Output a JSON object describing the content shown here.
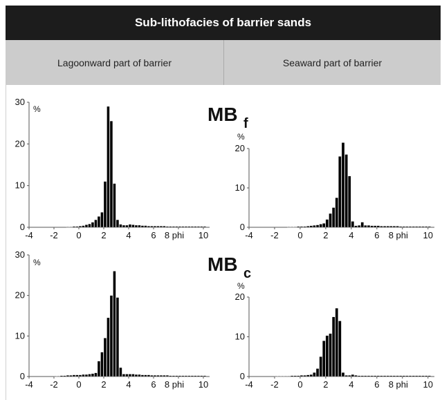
{
  "header": {
    "title": "Sub-lithofacies of barrier sands",
    "col_left": "Lagoonward part  of barrier",
    "col_right": "Seaward part of barrier"
  },
  "row_labels": [
    {
      "main": "MB",
      "sub": "f"
    },
    {
      "main": "MB",
      "sub": "c"
    }
  ],
  "colors": {
    "bar": "#000000",
    "header_bg": "#1c1c1c",
    "subheader_bg": "#cccccc"
  },
  "chart_data": [
    {
      "type": "bar",
      "row_label": "MB f",
      "column": "Lagoonward part  of barrier",
      "ylabel": "%",
      "ylim": [
        0,
        30
      ],
      "yticks": [
        0,
        10,
        20,
        30
      ],
      "xlim": [
        -4,
        10.5
      ],
      "xticks": [
        "-4",
        "-2",
        "0",
        "2",
        "4",
        "6",
        "8 phi",
        "10"
      ],
      "bin_width": 0.25,
      "x": [
        -1.0,
        -0.75,
        -0.5,
        -0.25,
        0.0,
        0.25,
        0.5,
        0.75,
        1.0,
        1.25,
        1.5,
        1.75,
        2.0,
        2.25,
        2.5,
        2.75,
        3.0,
        3.25,
        3.5,
        3.75,
        4.0,
        4.25,
        4.5,
        4.75,
        5.0,
        5.25,
        5.5,
        5.75,
        6.0,
        6.25,
        6.5,
        6.75,
        7.0,
        7.25,
        7.5,
        7.75,
        8.0,
        8.25,
        8.5,
        8.75,
        9.0,
        9.25,
        9.5,
        9.75,
        10.0
      ],
      "values": [
        0.1,
        0.1,
        0.2,
        0.2,
        0.3,
        0.4,
        0.6,
        0.8,
        1.2,
        1.8,
        2.6,
        3.6,
        11,
        29,
        25.5,
        10.5,
        1.8,
        0.7,
        0.5,
        0.5,
        0.7,
        0.6,
        0.5,
        0.5,
        0.4,
        0.4,
        0.3,
        0.3,
        0.3,
        0.3,
        0.3,
        0.3,
        0.2,
        0.2,
        0.2,
        0.2,
        0.2,
        0.2,
        0.2,
        0.2,
        0.2,
        0.2,
        0.2,
        0.2,
        0.2
      ]
    },
    {
      "type": "bar",
      "row_label": "MB f",
      "column": "Seaward part of barrier",
      "ylabel": "%",
      "ylim": [
        0,
        20
      ],
      "yticks": [
        0,
        10,
        20
      ],
      "xlim": [
        -4,
        10.5
      ],
      "xticks": [
        "-4",
        "-2",
        "0",
        "2",
        "4",
        "6",
        "8 phi",
        "10"
      ],
      "bin_width": 0.25,
      "x": [
        -1.0,
        -0.75,
        -0.5,
        -0.25,
        0.0,
        0.25,
        0.5,
        0.75,
        1.0,
        1.25,
        1.5,
        1.75,
        2.0,
        2.25,
        2.5,
        2.75,
        3.0,
        3.25,
        3.5,
        3.75,
        4.0,
        4.25,
        4.5,
        4.75,
        5.0,
        5.25,
        5.5,
        5.75,
        6.0,
        6.25,
        6.5,
        6.75,
        7.0,
        7.25,
        7.5,
        7.75,
        8.0,
        8.25,
        8.5,
        8.75,
        9.0,
        9.25,
        9.5,
        9.75,
        10.0
      ],
      "values": [
        0.1,
        0.1,
        0.1,
        0.2,
        0.2,
        0.2,
        0.3,
        0.4,
        0.5,
        0.6,
        0.8,
        1.0,
        2.0,
        3.5,
        5.0,
        7.5,
        18,
        21.5,
        18.5,
        13,
        1.5,
        0.4,
        0.5,
        1.3,
        0.5,
        0.5,
        0.4,
        0.4,
        0.4,
        0.3,
        0.3,
        0.3,
        0.3,
        0.3,
        0.3,
        0.2,
        0.2,
        0.2,
        0.2,
        0.2,
        0.2,
        0.2,
        0.2,
        0.2,
        0.2
      ]
    },
    {
      "type": "bar",
      "row_label": "MB c",
      "column": "Lagoonward part  of barrier",
      "ylabel": "%",
      "ylim": [
        0,
        30
      ],
      "yticks": [
        0,
        10,
        20,
        30
      ],
      "xlim": [
        -4,
        10.5
      ],
      "xticks": [
        "-4",
        "-2",
        "0",
        "2",
        "4",
        "6",
        "8 phi",
        "10"
      ],
      "bin_width": 0.25,
      "x": [
        -2.0,
        -1.75,
        -1.5,
        -1.25,
        -1.0,
        -0.75,
        -0.5,
        -0.25,
        0.0,
        0.25,
        0.5,
        0.75,
        1.0,
        1.25,
        1.5,
        1.75,
        2.0,
        2.25,
        2.5,
        2.75,
        3.0,
        3.25,
        3.5,
        3.75,
        4.0,
        4.25,
        4.5,
        4.75,
        5.0,
        5.25,
        5.5,
        5.75,
        6.0,
        6.25,
        6.5,
        6.75,
        7.0,
        7.25,
        7.5,
        7.75,
        8.0,
        8.25,
        8.5,
        8.75,
        9.0,
        9.25,
        9.5,
        9.75,
        10.0
      ],
      "values": [
        0.1,
        0.1,
        0.2,
        0.2,
        0.3,
        0.3,
        0.4,
        0.4,
        0.4,
        0.5,
        0.5,
        0.6,
        0.7,
        0.9,
        3.8,
        6.0,
        9.5,
        14.5,
        20,
        26,
        19.5,
        2.2,
        0.6,
        0.6,
        0.6,
        0.6,
        0.5,
        0.5,
        0.4,
        0.4,
        0.4,
        0.3,
        0.3,
        0.3,
        0.3,
        0.3,
        0.3,
        0.2,
        0.2,
        0.2,
        0.2,
        0.2,
        0.2,
        0.2,
        0.2,
        0.2,
        0.2,
        0.2,
        0.2
      ]
    },
    {
      "type": "bar",
      "row_label": "MB c",
      "column": "Seaward part of barrier",
      "ylabel": "%",
      "ylim": [
        0,
        20
      ],
      "yticks": [
        0,
        10,
        20
      ],
      "xlim": [
        -4,
        10.5
      ],
      "xticks": [
        "-4",
        "-2",
        "0",
        "2",
        "4",
        "6",
        "8 phi",
        "10"
      ],
      "bin_width": 0.25,
      "x": [
        -2.0,
        -1.75,
        -1.5,
        -1.25,
        -1.0,
        -0.75,
        -0.5,
        -0.25,
        0.0,
        0.25,
        0.5,
        0.75,
        1.0,
        1.25,
        1.5,
        1.75,
        2.0,
        2.25,
        2.5,
        2.75,
        3.0,
        3.25,
        3.5,
        3.75,
        4.0,
        4.25,
        4.5,
        4.75,
        5.0,
        5.25,
        5.5,
        5.75,
        6.0,
        6.25,
        6.5,
        6.75,
        7.0,
        7.25,
        7.5,
        7.75,
        8.0,
        8.25,
        8.5,
        8.75,
        9.0,
        9.25,
        9.5,
        9.75,
        10.0
      ],
      "values": [
        0.1,
        0.1,
        0.1,
        0.1,
        0.1,
        0.2,
        0.2,
        0.2,
        0.3,
        0.3,
        0.4,
        0.5,
        1.0,
        2.0,
        5.0,
        9.0,
        10.3,
        10.8,
        15,
        17.2,
        14,
        1.0,
        0.3,
        0.3,
        0.5,
        0.3,
        0.2,
        0.2,
        0.2,
        0.2,
        0.2,
        0.2,
        0.2,
        0.2,
        0.2,
        0.2,
        0.2,
        0.2,
        0.2,
        0.2,
        0.2,
        0.2,
        0.2,
        0.2,
        0.2,
        0.2,
        0.2,
        0.2,
        0.2
      ]
    }
  ]
}
